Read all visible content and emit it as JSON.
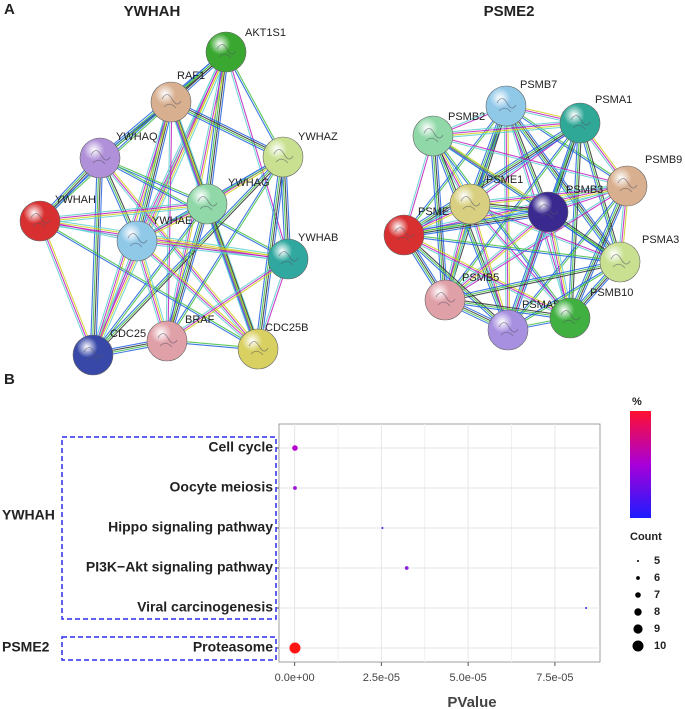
{
  "panel_a": {
    "label": "A",
    "networks": [
      {
        "title": "YWHAH",
        "nodes": [
          "AKT1S1",
          "RAF1",
          "YWHAQ",
          "YWHAZ",
          "YWHAG",
          "YWHAH",
          "YWHAE",
          "YWHAB",
          "CDC25",
          "BRAF",
          "CDC25B"
        ]
      },
      {
        "title": "PSME2",
        "nodes": [
          "PSMB7",
          "PSMA1",
          "PSMB2",
          "PSMB9",
          "PSME1",
          "PSMB3",
          "PSME",
          "PSMA3",
          "PSMB5",
          "PSMA5",
          "PSMB10"
        ]
      }
    ]
  },
  "chart_data": {
    "type": "bubble",
    "panel_label": "B",
    "x_label": "PValue",
    "groups": [
      "YWHAH",
      "PSME2"
    ],
    "categories": [
      "Cell cycle",
      "Oocyte meiosis",
      "Hippo signaling pathway",
      "PI3K−Akt signaling pathway",
      "Viral carcinogenesis",
      "Proteasome"
    ],
    "values": [
      1e-07,
      1e-07,
      2.53e-05,
      3.23e-05,
      8.4e-05,
      1e-07
    ],
    "sizes": [
      7,
      6,
      5,
      6,
      5,
      10
    ],
    "colors": [
      "#b400cc",
      "#9a12d8",
      "#3022ff",
      "#8a20e2",
      "#2a2aff",
      "#ff1414"
    ],
    "xlim": [
      -4.5e-06,
      8.8e-05
    ],
    "xticks": [
      {
        "value": 0,
        "label": "0.0e+00"
      },
      {
        "value": 2.5e-05,
        "label": "2.5e-05"
      },
      {
        "value": 5e-05,
        "label": "5.0e-05"
      },
      {
        "value": 7.5e-05,
        "label": "7.5e-05"
      }
    ],
    "grid": true,
    "color_scale": {
      "title": "%",
      "colors": [
        "#1c1cff",
        "#a800d8",
        "#ff1030"
      ]
    },
    "size_legend": {
      "title": "Count",
      "values": [
        5,
        6,
        7,
        8,
        9,
        10
      ]
    }
  }
}
